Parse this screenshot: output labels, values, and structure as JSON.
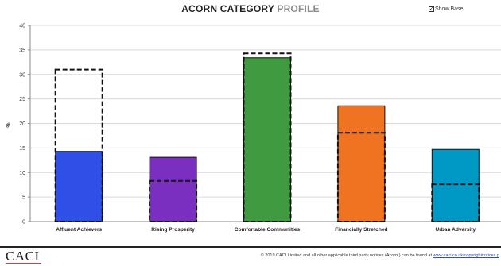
{
  "header": {
    "title_part1": "ACORN CATEGORY",
    "title_part2": "PROFILE",
    "show_base_label": "Show Base",
    "show_base_checked": true,
    "checkbox_glyph": "✓"
  },
  "footer": {
    "logo_text": "CACI",
    "copyright_text": "© 2019 CACI Limited and all other applicable third party notices (Acorn ) can be found at",
    "copyright_link": "www.caci.co.uk/copyrightnotices.p"
  },
  "colors": {
    "axis": "#888888",
    "grid": "#d9d9d9",
    "base_outline": "#111111"
  },
  "chart_data": {
    "type": "bar",
    "title": "ACORN CATEGORY PROFILE",
    "ylabel": "%",
    "ylim": [
      0,
      40
    ],
    "yticks": [
      0,
      5,
      10,
      15,
      20,
      25,
      30,
      35,
      40
    ],
    "grid": true,
    "categories": [
      "Affluent Achievers",
      "Rising Prosperity",
      "Comfortable Communities",
      "Financially Stretched",
      "Urban Adversity"
    ],
    "series": [
      {
        "values": [
          14.3,
          13.1,
          33.4,
          23.6,
          14.7
        ],
        "colors": [
          "#2f4fe6",
          "#7a2fc0",
          "#3f9a40",
          "#f07322",
          "#0099c6"
        ]
      },
      {
        "style": "dashed-outline",
        "values": [
          31.0,
          8.3,
          34.3,
          18.1,
          7.6
        ]
      }
    ]
  }
}
